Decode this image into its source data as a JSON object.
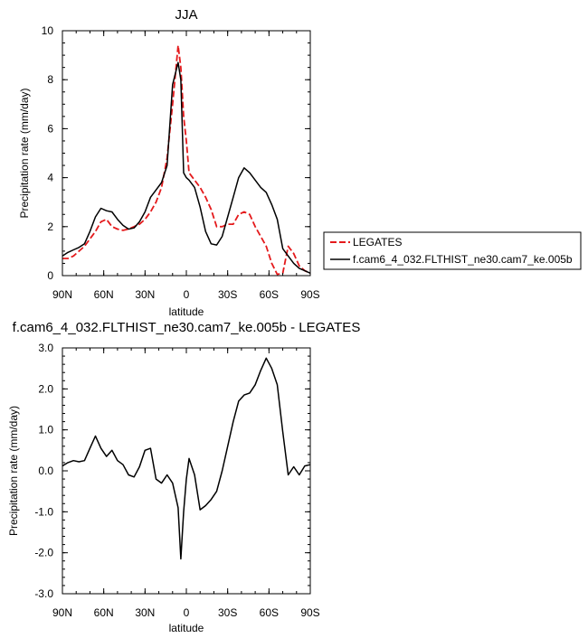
{
  "chart_data": [
    {
      "type": "line",
      "title": "JJA",
      "xlabel": "latitude",
      "ylabel": "Precipitation rate (mm/day)",
      "xlim": [
        90,
        -90
      ],
      "ylim": [
        0,
        10
      ],
      "x_ticks": [
        {
          "v": 90,
          "label": "90N"
        },
        {
          "v": 60,
          "label": "60N"
        },
        {
          "v": 30,
          "label": "30N"
        },
        {
          "v": 0,
          "label": "0"
        },
        {
          "v": -30,
          "label": "30S"
        },
        {
          "v": -60,
          "label": "60S"
        },
        {
          "v": -90,
          "label": "90S"
        }
      ],
      "y_ticks": [
        {
          "v": 0,
          "label": "0"
        },
        {
          "v": 2,
          "label": "2"
        },
        {
          "v": 4,
          "label": "4"
        },
        {
          "v": 6,
          "label": "6"
        },
        {
          "v": 8,
          "label": "8"
        },
        {
          "v": 10,
          "label": "10"
        }
      ],
      "legend_placement": "right",
      "series": [
        {
          "name": "LEGATES",
          "color": "#e41a1c",
          "dash": "dashed",
          "x": [
            90,
            86,
            82,
            78,
            74,
            70,
            66,
            62,
            58,
            54,
            50,
            46,
            42,
            38,
            34,
            30,
            26,
            22,
            18,
            14,
            10,
            6,
            4,
            2,
            0,
            -2,
            -6,
            -10,
            -14,
            -18,
            -22,
            -26,
            -30,
            -34,
            -38,
            -42,
            -46,
            -50,
            -54,
            -58,
            -62,
            -66,
            -70,
            -74,
            -78,
            -82,
            -86,
            -90
          ],
          "y": [
            0.7,
            0.7,
            0.8,
            1.0,
            1.2,
            1.5,
            1.8,
            2.2,
            2.3,
            2.0,
            1.9,
            1.85,
            1.9,
            2.0,
            2.1,
            2.3,
            2.6,
            3.0,
            3.6,
            4.8,
            7.0,
            9.4,
            8.5,
            6.5,
            5.5,
            4.2,
            3.9,
            3.6,
            3.2,
            2.7,
            2.0,
            2.0,
            2.1,
            2.1,
            2.5,
            2.6,
            2.5,
            2.0,
            1.6,
            1.2,
            0.5,
            0.05,
            0.1,
            1.2,
            0.9,
            0.4,
            0.2,
            0.1
          ]
        },
        {
          "name": "f.cam6_4_032.FLTHIST_ne30.cam7_ke.005b",
          "color": "#000000",
          "dash": "solid",
          "x": [
            90,
            86,
            82,
            78,
            74,
            70,
            66,
            62,
            58,
            54,
            50,
            46,
            42,
            38,
            34,
            30,
            26,
            22,
            18,
            14,
            10,
            6,
            4,
            2,
            0,
            -2,
            -6,
            -10,
            -14,
            -18,
            -22,
            -26,
            -30,
            -34,
            -38,
            -42,
            -46,
            -50,
            -54,
            -58,
            -62,
            -66,
            -70,
            -74,
            -78,
            -82,
            -86,
            -90
          ],
          "y": [
            0.8,
            0.95,
            1.05,
            1.15,
            1.3,
            1.8,
            2.4,
            2.75,
            2.65,
            2.6,
            2.3,
            2.05,
            1.9,
            1.95,
            2.2,
            2.6,
            3.2,
            3.5,
            3.8,
            4.5,
            7.8,
            8.7,
            8.0,
            4.2,
            4.0,
            3.9,
            3.6,
            2.8,
            1.8,
            1.3,
            1.25,
            1.6,
            2.4,
            3.2,
            4.0,
            4.4,
            4.2,
            3.9,
            3.6,
            3.4,
            2.9,
            2.3,
            1.1,
            0.8,
            0.5,
            0.3,
            0.2,
            0.1
          ]
        }
      ]
    },
    {
      "type": "line",
      "title": "f.cam6_4_032.FLTHIST_ne30.cam7_ke.005b - LEGATES",
      "xlabel": "latitude",
      "ylabel": "Precipitation rate (mm/day)",
      "xlim": [
        90,
        -90
      ],
      "ylim": [
        -3,
        3
      ],
      "x_ticks": [
        {
          "v": 90,
          "label": "90N"
        },
        {
          "v": 60,
          "label": "60N"
        },
        {
          "v": 30,
          "label": "30N"
        },
        {
          "v": 0,
          "label": "0"
        },
        {
          "v": -30,
          "label": "30S"
        },
        {
          "v": -60,
          "label": "60S"
        },
        {
          "v": -90,
          "label": "90S"
        }
      ],
      "y_ticks": [
        {
          "v": -3,
          "label": "-3.0"
        },
        {
          "v": -2,
          "label": "-2.0"
        },
        {
          "v": -1,
          "label": "-1.0"
        },
        {
          "v": 0,
          "label": "0.0"
        },
        {
          "v": 1,
          "label": "1.0"
        },
        {
          "v": 2,
          "label": "2.0"
        },
        {
          "v": 3,
          "label": "3.0"
        }
      ],
      "series": [
        {
          "color": "#000000",
          "dash": "solid",
          "x": [
            90,
            86,
            82,
            78,
            74,
            70,
            66,
            62,
            58,
            54,
            50,
            46,
            42,
            38,
            34,
            30,
            26,
            22,
            18,
            14,
            10,
            6,
            4,
            2,
            0,
            -2,
            -6,
            -10,
            -14,
            -18,
            -22,
            -26,
            -30,
            -34,
            -38,
            -42,
            -46,
            -50,
            -54,
            -58,
            -62,
            -66,
            -70,
            -74,
            -78,
            -82,
            -86,
            -90
          ],
          "y": [
            0.12,
            0.2,
            0.25,
            0.22,
            0.25,
            0.55,
            0.85,
            0.55,
            0.35,
            0.5,
            0.25,
            0.15,
            -0.1,
            -0.15,
            0.1,
            0.5,
            0.55,
            -0.2,
            -0.3,
            -0.1,
            -0.3,
            -0.9,
            -2.15,
            -1.0,
            -0.2,
            0.3,
            -0.1,
            -0.95,
            -0.85,
            -0.7,
            -0.5,
            0.0,
            0.6,
            1.2,
            1.7,
            1.85,
            1.9,
            2.1,
            2.45,
            2.75,
            2.5,
            2.1,
            0.95,
            -0.1,
            0.1,
            -0.1,
            0.12,
            0.15
          ]
        }
      ]
    }
  ]
}
